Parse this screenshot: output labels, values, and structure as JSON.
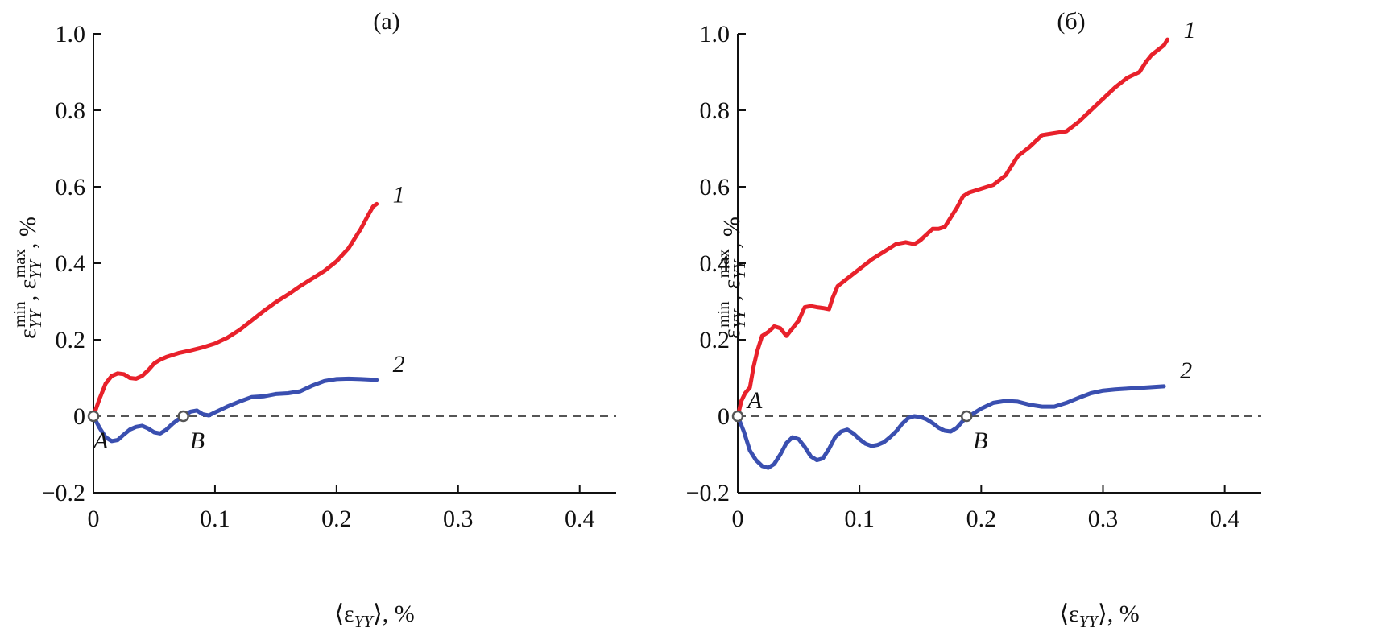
{
  "chart_data": [
    {
      "type": "line",
      "title": "(a)",
      "xlabel": "⟨εYY⟩, %",
      "ylabel": "εYY min, εYY max, %",
      "xlim": [
        0,
        0.43
      ],
      "ylim": [
        -0.2,
        1.0
      ],
      "xticks": [
        "0",
        "0.1",
        "0.2",
        "0.3",
        "0.4"
      ],
      "yticks": [
        "1.0",
        "0.8",
        "0.6",
        "0.4",
        "0.2",
        "0",
        "−0.2"
      ],
      "series": [
        {
          "name": "1",
          "color": "#e8212b",
          "x": [
            0,
            0.005,
            0.01,
            0.015,
            0.02,
            0.025,
            0.03,
            0.035,
            0.04,
            0.045,
            0.05,
            0.055,
            0.06,
            0.07,
            0.08,
            0.09,
            0.1,
            0.11,
            0.12,
            0.13,
            0.14,
            0.15,
            0.16,
            0.17,
            0.18,
            0.19,
            0.2,
            0.21,
            0.215,
            0.22,
            0.225,
            0.23,
            0.233
          ],
          "values": [
            0,
            0.045,
            0.085,
            0.105,
            0.112,
            0.11,
            0.1,
            0.098,
            0.105,
            0.12,
            0.138,
            0.148,
            0.155,
            0.165,
            0.172,
            0.18,
            0.19,
            0.205,
            0.225,
            0.25,
            0.275,
            0.298,
            0.318,
            0.34,
            0.36,
            0.38,
            0.405,
            0.44,
            0.465,
            0.49,
            0.52,
            0.548,
            0.555
          ]
        },
        {
          "name": "2",
          "color": "#3a4fb0",
          "x": [
            0,
            0.005,
            0.01,
            0.015,
            0.02,
            0.025,
            0.03,
            0.035,
            0.04,
            0.045,
            0.05,
            0.055,
            0.06,
            0.065,
            0.07,
            0.075,
            0.08,
            0.085,
            0.09,
            0.095,
            0.1,
            0.11,
            0.12,
            0.13,
            0.14,
            0.15,
            0.16,
            0.17,
            0.18,
            0.19,
            0.2,
            0.21,
            0.22,
            0.233
          ],
          "values": [
            0,
            -0.03,
            -0.055,
            -0.065,
            -0.062,
            -0.048,
            -0.035,
            -0.028,
            -0.025,
            -0.032,
            -0.042,
            -0.045,
            -0.035,
            -0.02,
            -0.008,
            0.002,
            0.012,
            0.015,
            0.005,
            0.002,
            0.01,
            0.025,
            0.038,
            0.05,
            0.052,
            0.058,
            0.06,
            0.065,
            0.08,
            0.092,
            0.097,
            0.098,
            0.097,
            0.095
          ]
        }
      ],
      "points": [
        {
          "name": "A",
          "x": 0,
          "y": 0,
          "label_pos": "below"
        },
        {
          "name": "B",
          "x": 0.074,
          "y": 0,
          "label_pos": "below"
        }
      ],
      "baseline": {
        "y": 0,
        "style": "dashed"
      }
    },
    {
      "type": "line",
      "title": "(б)",
      "xlabel": "⟨εYY⟩, %",
      "ylabel": "εYY min, εYY max, %",
      "xlim": [
        0,
        0.43
      ],
      "ylim": [
        -0.2,
        1.0
      ],
      "xticks": [
        "0",
        "0.1",
        "0.2",
        "0.3",
        "0.4"
      ],
      "yticks": [
        "1.0",
        "0.8",
        "0.6",
        "0.4",
        "0.2",
        "0",
        "−0.2"
      ],
      "series": [
        {
          "name": "1",
          "color": "#e8212b",
          "x": [
            0,
            0.003,
            0.006,
            0.01,
            0.013,
            0.016,
            0.02,
            0.025,
            0.03,
            0.035,
            0.04,
            0.045,
            0.05,
            0.055,
            0.06,
            0.065,
            0.07,
            0.075,
            0.078,
            0.082,
            0.09,
            0.1,
            0.11,
            0.12,
            0.13,
            0.138,
            0.145,
            0.15,
            0.155,
            0.16,
            0.165,
            0.17,
            0.175,
            0.18,
            0.185,
            0.19,
            0.2,
            0.21,
            0.22,
            0.23,
            0.24,
            0.25,
            0.26,
            0.27,
            0.28,
            0.29,
            0.3,
            0.31,
            0.32,
            0.33,
            0.335,
            0.34,
            0.35,
            0.353
          ],
          "values": [
            0,
            0.04,
            0.06,
            0.075,
            0.13,
            0.17,
            0.21,
            0.22,
            0.235,
            0.23,
            0.21,
            0.23,
            0.25,
            0.285,
            0.288,
            0.285,
            0.283,
            0.28,
            0.31,
            0.34,
            0.36,
            0.385,
            0.41,
            0.43,
            0.45,
            0.455,
            0.45,
            0.46,
            0.475,
            0.49,
            0.49,
            0.495,
            0.52,
            0.545,
            0.575,
            0.585,
            0.595,
            0.605,
            0.63,
            0.68,
            0.705,
            0.735,
            0.74,
            0.745,
            0.77,
            0.8,
            0.83,
            0.86,
            0.885,
            0.9,
            0.925,
            0.945,
            0.97,
            0.985
          ]
        },
        {
          "name": "2",
          "color": "#3a4fb0",
          "x": [
            0,
            0.005,
            0.01,
            0.015,
            0.02,
            0.025,
            0.03,
            0.035,
            0.04,
            0.045,
            0.05,
            0.055,
            0.06,
            0.065,
            0.07,
            0.075,
            0.08,
            0.085,
            0.09,
            0.095,
            0.1,
            0.105,
            0.11,
            0.115,
            0.12,
            0.125,
            0.13,
            0.135,
            0.14,
            0.145,
            0.15,
            0.155,
            0.16,
            0.165,
            0.17,
            0.175,
            0.18,
            0.185,
            0.19,
            0.2,
            0.21,
            0.22,
            0.23,
            0.24,
            0.25,
            0.26,
            0.27,
            0.28,
            0.29,
            0.3,
            0.31,
            0.32,
            0.33,
            0.34,
            0.35
          ],
          "values": [
            0,
            -0.04,
            -0.09,
            -0.115,
            -0.13,
            -0.135,
            -0.125,
            -0.1,
            -0.07,
            -0.055,
            -0.06,
            -0.08,
            -0.105,
            -0.115,
            -0.11,
            -0.085,
            -0.055,
            -0.04,
            -0.035,
            -0.045,
            -0.06,
            -0.072,
            -0.078,
            -0.075,
            -0.068,
            -0.055,
            -0.04,
            -0.02,
            -0.005,
            0,
            -0.002,
            -0.008,
            -0.018,
            -0.03,
            -0.038,
            -0.04,
            -0.03,
            -0.012,
            0,
            0.02,
            0.035,
            0.04,
            0.038,
            0.03,
            0.025,
            0.025,
            0.035,
            0.048,
            0.06,
            0.067,
            0.07,
            0.072,
            0.074,
            0.076,
            0.078
          ]
        }
      ],
      "points": [
        {
          "name": "A",
          "x": 0,
          "y": 0,
          "label_pos": "above"
        },
        {
          "name": "B",
          "x": 0.188,
          "y": 0,
          "label_pos": "below"
        }
      ],
      "baseline": {
        "y": 0,
        "style": "dashed"
      }
    }
  ],
  "labels": {
    "ylabel_eps": "ε",
    "ylabel_sub": "YY",
    "ylabel_min": "min",
    "ylabel_max": "max",
    "ylabel_sep": ", ",
    "ylabel_unit": ", %",
    "xlabel_open": "⟨ε",
    "xlabel_sub": "YY",
    "xlabel_close": "⟩, %"
  }
}
